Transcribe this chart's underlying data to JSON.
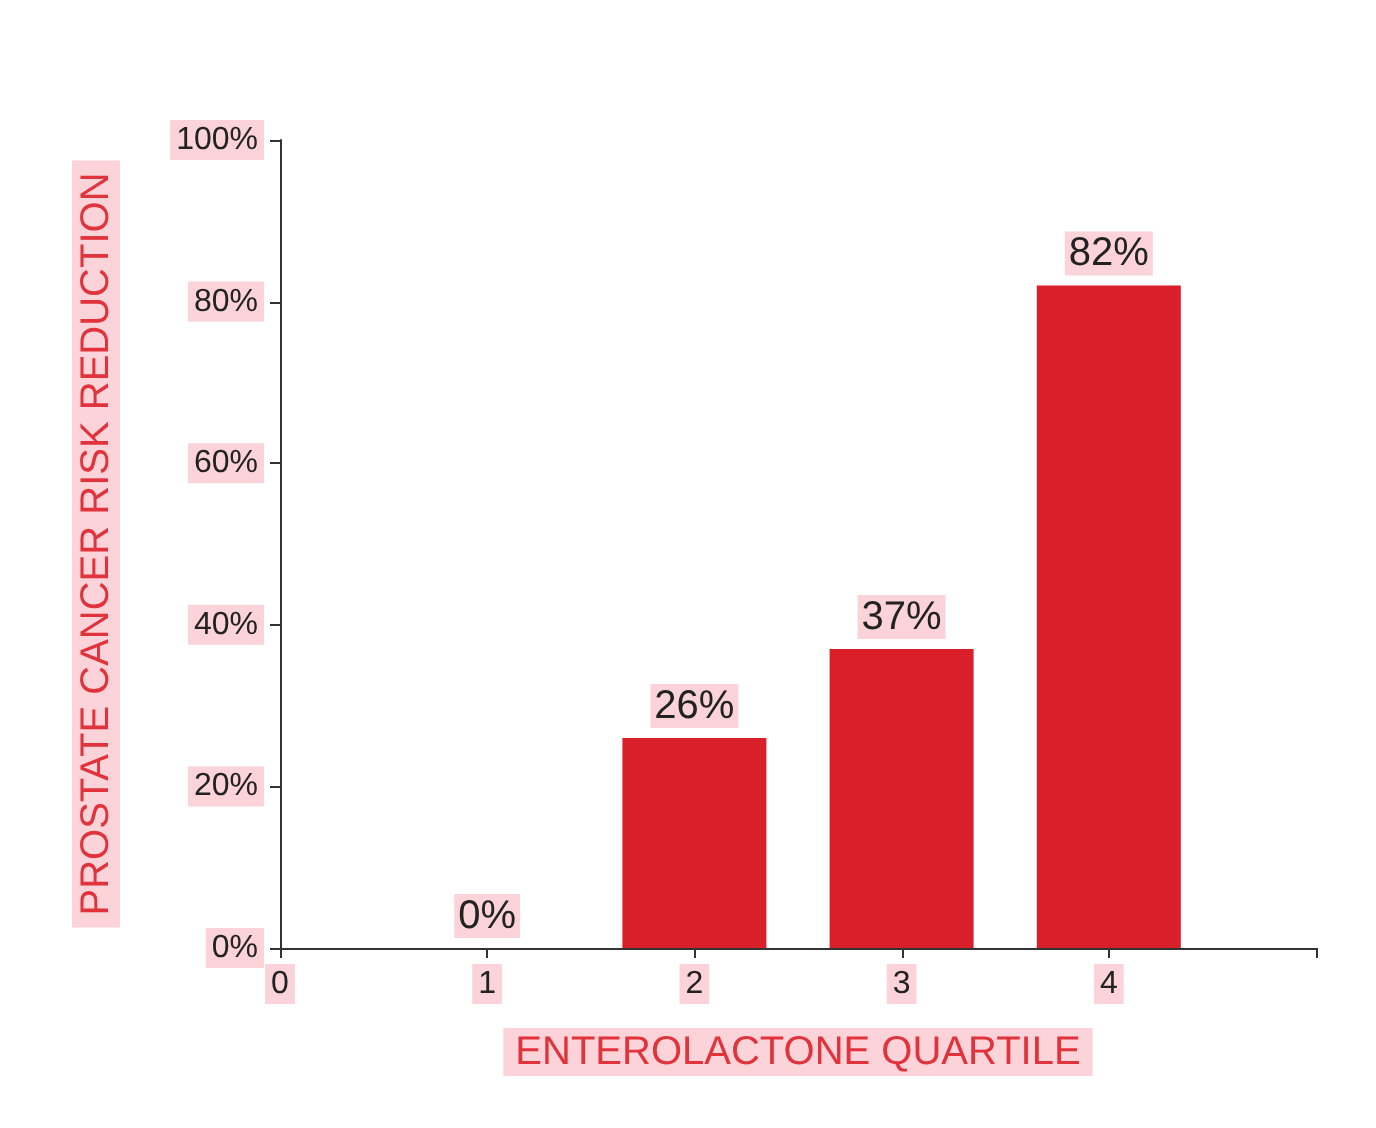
{
  "chart_data": {
    "type": "bar",
    "xlabel": "ENTEROLACTONE QUARTILE",
    "ylabel": "PROSTATE CANCER RISK REDUCTION",
    "x": [
      1,
      2,
      3,
      4
    ],
    "values": [
      0,
      26,
      37,
      82
    ],
    "color": "#d91f29",
    "value_labels": [
      "0%",
      "26%",
      "37%",
      "82%"
    ],
    "xlim": [
      0,
      5
    ],
    "xticks": [
      0,
      1,
      2,
      3,
      4,
      {
        "value": 5,
        "label": null
      }
    ],
    "ylim": [
      0,
      100
    ],
    "yticks": [
      {
        "value": 0,
        "label": "0%"
      },
      {
        "value": 20,
        "label": "20%"
      },
      {
        "value": 40,
        "label": "40%"
      },
      {
        "value": 60,
        "label": "60%"
      },
      {
        "value": 80,
        "label": "80%"
      },
      {
        "value": 100,
        "label": "100%"
      }
    ],
    "grid": false
  }
}
